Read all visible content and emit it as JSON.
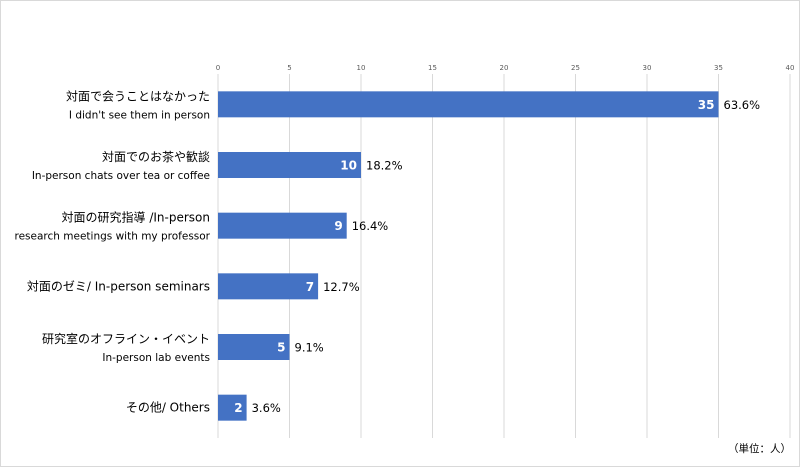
{
  "chart_data": {
    "type": "bar",
    "orientation": "horizontal",
    "xlim": [
      0,
      40
    ],
    "ticks": [
      0,
      5,
      10,
      15,
      20,
      25,
      30,
      35,
      40
    ],
    "grid": true,
    "legend": "none",
    "bar_color": "#4472c4",
    "categories": [
      {
        "line1": "対面で会うことはなかった",
        "line2": "I didn't see them in person"
      },
      {
        "line1": "対面でのお茶や歓談",
        "line2": "In-person chats over tea or coffee"
      },
      {
        "line1": "対面の研究指導 /In-person",
        "line2": "research meetings with my professor"
      },
      {
        "line1": "対面のゼミ/ In-person seminars",
        "line2": ""
      },
      {
        "line1": "研究室のオフライン・イベント",
        "line2": "In-person lab events"
      },
      {
        "line1": "その他/ Others",
        "line2": ""
      }
    ],
    "values": [
      35,
      10,
      9,
      7,
      5,
      2
    ],
    "percent_labels": [
      "63.6%",
      "18.2%",
      "16.4%",
      "12.7%",
      "9.1%",
      "3.6%"
    ],
    "unit_note": "（単位：人）"
  }
}
